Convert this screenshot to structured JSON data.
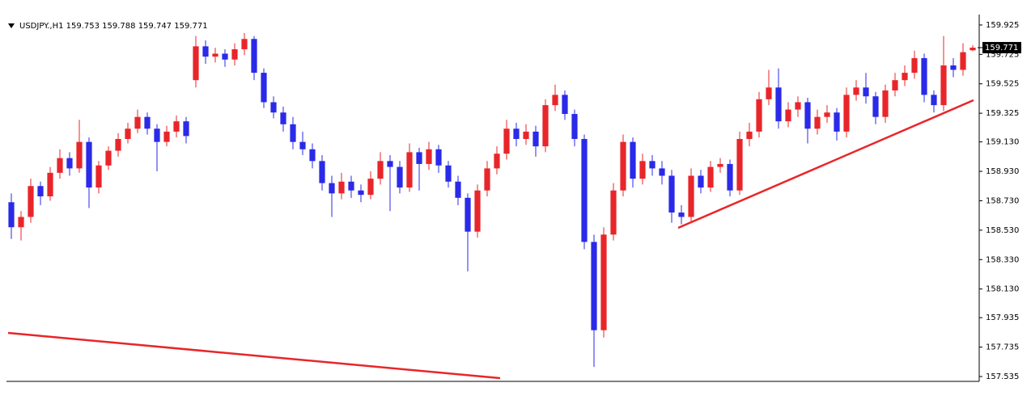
{
  "chart_data": {
    "type": "candlestick",
    "header": "USDJPY.,H1  159.753 159.788 159.747 159.771",
    "up_color": "#e8262a",
    "down_color": "#2a2ae8",
    "ylim": [
      157.513,
      159.974
    ],
    "yticks": [
      159.925,
      159.725,
      159.525,
      159.325,
      {
        "value": 159.13,
        "label": "159.130"
      },
      {
        "value": 158.93,
        "label": "158.930"
      },
      {
        "value": 158.73,
        "label": "158.730"
      },
      {
        "value": 158.53,
        "label": "158.530"
      },
      {
        "value": 158.33,
        "label": "158.330"
      },
      {
        "value": 158.13,
        "label": "158.130"
      },
      157.935,
      157.735,
      157.535
    ],
    "current_price": 159.771,
    "ohlc": [
      [
        158.72,
        158.78,
        158.47,
        158.55
      ],
      [
        158.55,
        158.66,
        158.46,
        158.62
      ],
      [
        158.62,
        158.88,
        158.58,
        158.83
      ],
      [
        158.83,
        158.86,
        158.7,
        158.76
      ],
      [
        158.76,
        158.96,
        158.73,
        158.92
      ],
      [
        158.92,
        159.08,
        158.88,
        159.02
      ],
      [
        159.02,
        159.06,
        158.9,
        158.95
      ],
      [
        158.95,
        159.28,
        158.92,
        159.13
      ],
      [
        159.13,
        159.16,
        158.68,
        158.82
      ],
      [
        158.82,
        159.0,
        158.78,
        158.97
      ],
      [
        158.97,
        159.1,
        158.94,
        159.07
      ],
      [
        159.07,
        159.19,
        159.03,
        159.15
      ],
      [
        159.15,
        159.26,
        159.12,
        159.22
      ],
      [
        159.22,
        159.35,
        159.19,
        159.3
      ],
      [
        159.3,
        159.33,
        159.18,
        159.22
      ],
      [
        159.22,
        159.25,
        158.93,
        159.13
      ],
      [
        159.13,
        159.24,
        159.1,
        159.2
      ],
      [
        159.2,
        159.31,
        159.16,
        159.27
      ],
      [
        159.27,
        159.3,
        159.12,
        159.17
      ],
      [
        159.55,
        159.85,
        159.5,
        159.78
      ],
      [
        159.78,
        159.82,
        159.66,
        159.71
      ],
      [
        159.71,
        159.77,
        159.67,
        159.73
      ],
      [
        159.73,
        159.76,
        159.64,
        159.69
      ],
      [
        159.69,
        159.8,
        159.65,
        159.76
      ],
      [
        159.76,
        159.87,
        159.72,
        159.83
      ],
      [
        159.83,
        159.85,
        159.55,
        159.6
      ],
      [
        159.6,
        159.63,
        159.36,
        159.4
      ],
      [
        159.4,
        159.44,
        159.29,
        159.33
      ],
      [
        159.33,
        159.37,
        159.2,
        159.25
      ],
      [
        159.25,
        159.3,
        159.08,
        159.13
      ],
      [
        159.13,
        159.2,
        159.04,
        159.08
      ],
      [
        159.08,
        159.12,
        158.95,
        159.0
      ],
      [
        159.0,
        159.04,
        158.8,
        158.85
      ],
      [
        158.85,
        158.9,
        158.62,
        158.78
      ],
      [
        158.78,
        158.92,
        158.74,
        158.86
      ],
      [
        158.86,
        158.9,
        158.75,
        158.8
      ],
      [
        158.8,
        158.84,
        158.72,
        158.77
      ],
      [
        158.77,
        158.93,
        158.74,
        158.88
      ],
      [
        158.88,
        159.06,
        158.84,
        159.0
      ],
      [
        159.0,
        159.04,
        158.66,
        158.96
      ],
      [
        158.96,
        159.0,
        158.78,
        158.82
      ],
      [
        158.82,
        159.12,
        158.79,
        159.06
      ],
      [
        159.06,
        159.09,
        158.8,
        158.98
      ],
      [
        158.98,
        159.13,
        158.94,
        159.08
      ],
      [
        159.08,
        159.11,
        158.92,
        158.97
      ],
      [
        158.97,
        159.0,
        158.82,
        158.86
      ],
      [
        158.86,
        158.9,
        158.7,
        158.75
      ],
      [
        158.75,
        158.78,
        158.25,
        158.52
      ],
      [
        158.52,
        158.84,
        158.48,
        158.8
      ],
      [
        158.8,
        159.0,
        158.76,
        158.95
      ],
      [
        158.95,
        159.1,
        158.91,
        159.05
      ],
      [
        159.05,
        159.28,
        159.01,
        159.22
      ],
      [
        159.22,
        159.26,
        159.1,
        159.15
      ],
      [
        159.15,
        159.25,
        159.11,
        159.2
      ],
      [
        159.2,
        159.24,
        159.03,
        159.1
      ],
      [
        159.1,
        159.42,
        159.06,
        159.38
      ],
      [
        159.38,
        159.52,
        159.34,
        159.45
      ],
      [
        159.45,
        159.48,
        159.28,
        159.32
      ],
      [
        159.32,
        159.35,
        159.1,
        159.15
      ],
      [
        159.15,
        159.18,
        158.4,
        158.45
      ],
      [
        158.45,
        158.5,
        157.6,
        157.85
      ],
      [
        157.85,
        158.55,
        157.8,
        158.5
      ],
      [
        158.5,
        158.85,
        158.46,
        158.8
      ],
      [
        158.8,
        159.18,
        158.76,
        159.13
      ],
      [
        159.13,
        159.16,
        158.82,
        158.88
      ],
      [
        158.88,
        159.05,
        158.84,
        159.0
      ],
      [
        159.0,
        159.04,
        158.9,
        158.95
      ],
      [
        158.95,
        159.0,
        158.84,
        158.9
      ],
      [
        158.9,
        158.94,
        158.58,
        158.65
      ],
      [
        158.65,
        158.7,
        158.57,
        158.62
      ],
      [
        158.62,
        158.95,
        158.58,
        158.9
      ],
      [
        158.9,
        158.94,
        158.78,
        158.82
      ],
      [
        158.82,
        159.0,
        158.79,
        158.96
      ],
      [
        158.96,
        159.02,
        158.92,
        158.98
      ],
      [
        158.98,
        159.01,
        158.76,
        158.8
      ],
      [
        158.8,
        159.2,
        158.77,
        159.15
      ],
      [
        159.15,
        159.26,
        159.1,
        159.2
      ],
      [
        159.2,
        159.47,
        159.16,
        159.42
      ],
      [
        159.42,
        159.62,
        159.38,
        159.5
      ],
      [
        159.5,
        159.63,
        159.22,
        159.27
      ],
      [
        159.27,
        159.4,
        159.23,
        159.35
      ],
      [
        159.35,
        159.44,
        159.3,
        159.4
      ],
      [
        159.4,
        159.43,
        159.12,
        159.22
      ],
      [
        159.22,
        159.35,
        159.18,
        159.3
      ],
      [
        159.3,
        159.38,
        159.26,
        159.33
      ],
      [
        159.33,
        159.36,
        159.14,
        159.2
      ],
      [
        159.2,
        159.5,
        159.16,
        159.45
      ],
      [
        159.45,
        159.55,
        159.41,
        159.5
      ],
      [
        159.5,
        159.6,
        159.39,
        159.44
      ],
      [
        159.44,
        159.47,
        159.25,
        159.3
      ],
      [
        159.3,
        159.52,
        159.26,
        159.48
      ],
      [
        159.48,
        159.6,
        159.44,
        159.55
      ],
      [
        159.55,
        159.65,
        159.51,
        159.6
      ],
      [
        159.6,
        159.75,
        159.56,
        159.7
      ],
      [
        159.7,
        159.73,
        159.4,
        159.45
      ],
      [
        159.45,
        159.48,
        159.33,
        159.38
      ],
      [
        159.38,
        159.85,
        159.34,
        159.65
      ],
      [
        159.65,
        159.7,
        159.57,
        159.62
      ],
      [
        159.62,
        159.8,
        159.58,
        159.74
      ],
      [
        159.753,
        159.788,
        159.747,
        159.771
      ]
    ]
  }
}
